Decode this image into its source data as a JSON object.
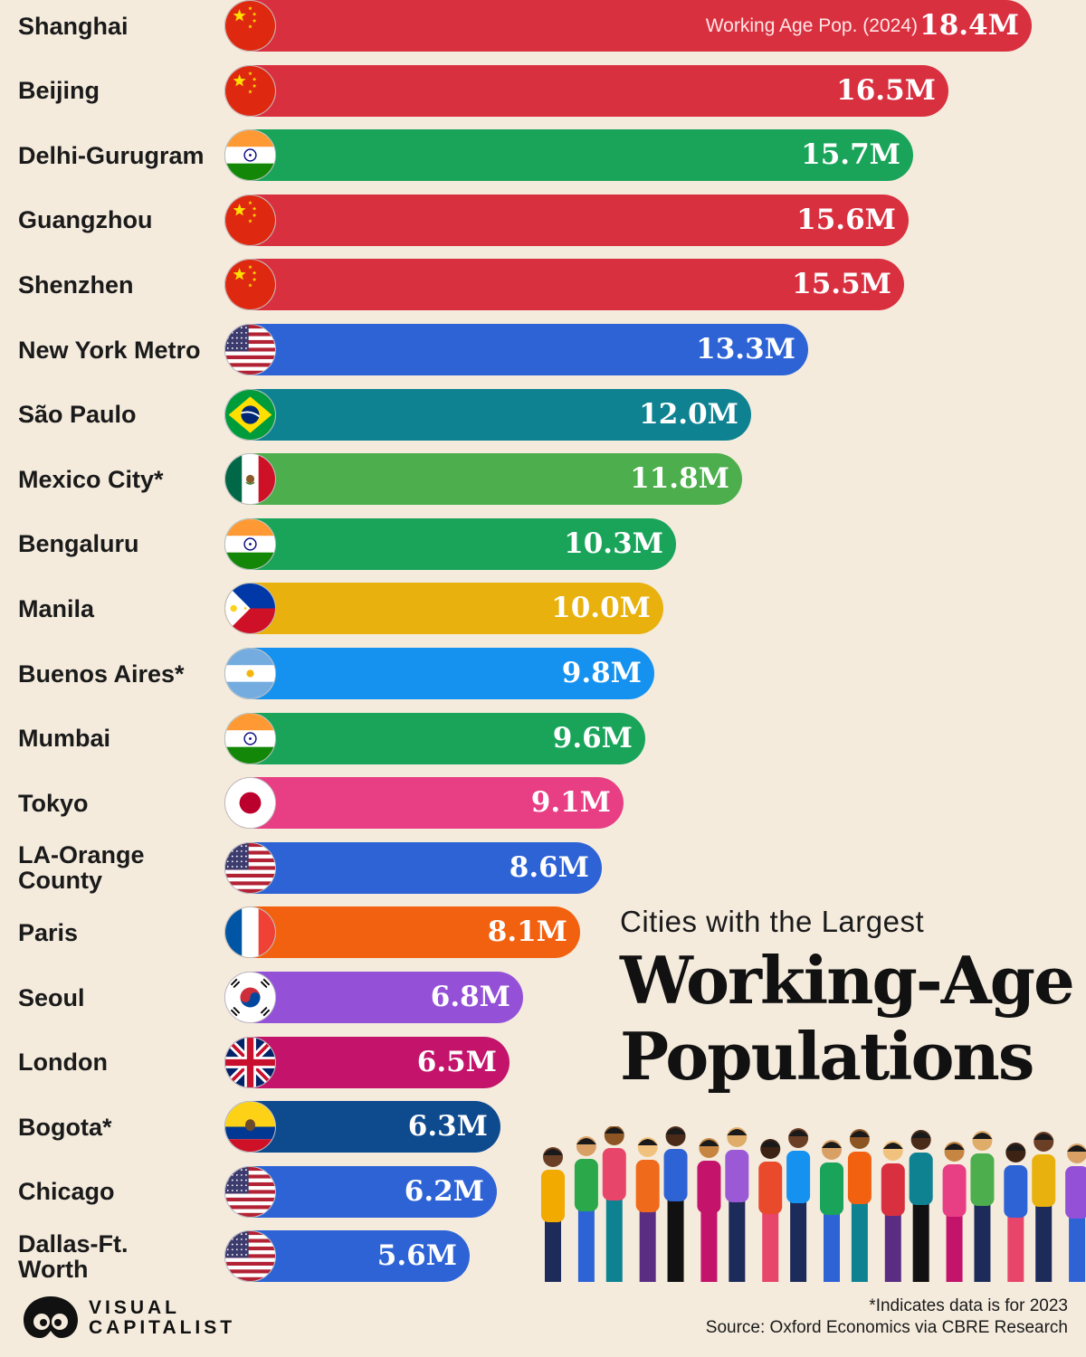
{
  "chart_data": {
    "type": "bar",
    "orientation": "horizontal",
    "title": "Working-Age Populations",
    "subtitle": "Cities with the Largest",
    "value_note": "Working Age Pop. (2024)",
    "unit": "M",
    "bars": [
      {
        "city": "Shanghai",
        "value": 18.4,
        "label": "18.4M",
        "flag": "china-flag-icon",
        "color": "#d93040"
      },
      {
        "city": "Beijing",
        "value": 16.5,
        "label": "16.5M",
        "flag": "china-flag-icon",
        "color": "#d93040"
      },
      {
        "city": "Delhi-Gurugram",
        "value": 15.7,
        "label": "15.7M",
        "flag": "india-flag-icon",
        "color": "#19a45a"
      },
      {
        "city": "Guangzhou",
        "value": 15.6,
        "label": "15.6M",
        "flag": "china-flag-icon",
        "color": "#d93040"
      },
      {
        "city": "Shenzhen",
        "value": 15.5,
        "label": "15.5M",
        "flag": "china-flag-icon",
        "color": "#d93040"
      },
      {
        "city": "New York Metro",
        "value": 13.3,
        "label": "13.3M",
        "flag": "usa-flag-icon",
        "color": "#2e63d6"
      },
      {
        "city": "São Paulo",
        "value": 12.0,
        "label": "12.0M",
        "flag": "brazil-flag-icon",
        "color": "#0f8292"
      },
      {
        "city": "Mexico City*",
        "value": 11.8,
        "label": "11.8M",
        "flag": "mexico-flag-icon",
        "color": "#4cae4c"
      },
      {
        "city": "Bengaluru",
        "value": 10.3,
        "label": "10.3M",
        "flag": "india-flag-icon",
        "color": "#19a45a"
      },
      {
        "city": "Manila",
        "value": 10.0,
        "label": "10.0M",
        "flag": "philippines-flag-icon",
        "color": "#e8b10d"
      },
      {
        "city": "Buenos Aires*",
        "value": 9.8,
        "label": "9.8M",
        "flag": "argentina-flag-icon",
        "color": "#1592ef"
      },
      {
        "city": "Mumbai",
        "value": 9.6,
        "label": "9.6M",
        "flag": "india-flag-icon",
        "color": "#19a45a"
      },
      {
        "city": "Tokyo",
        "value": 9.1,
        "label": "9.1M",
        "flag": "japan-flag-icon",
        "color": "#e83f84"
      },
      {
        "city": "LA-Orange County",
        "value": 8.6,
        "label": "8.6M",
        "flag": "usa-flag-icon",
        "color": "#2e63d6"
      },
      {
        "city": "Paris",
        "value": 8.1,
        "label": "8.1M",
        "flag": "france-flag-icon",
        "color": "#f26110"
      },
      {
        "city": "Seoul",
        "value": 6.8,
        "label": "6.8M",
        "flag": "south-korea-flag-icon",
        "color": "#9451d8"
      },
      {
        "city": "London",
        "value": 6.5,
        "label": "6.5M",
        "flag": "uk-flag-icon",
        "color": "#c3136a"
      },
      {
        "city": "Bogota*",
        "value": 6.3,
        "label": "6.3M",
        "flag": "colombia-flag-icon",
        "color": "#0e4a8e"
      },
      {
        "city": "Chicago",
        "value": 6.2,
        "label": "6.2M",
        "flag": "usa-flag-icon",
        "color": "#2e63d6"
      },
      {
        "city": "Dallas-Ft. Worth",
        "value": 5.6,
        "label": "5.6M",
        "flag": "usa-flag-icon",
        "color": "#2e63d6"
      }
    ],
    "footnote": "*Indicates data is for 2023",
    "source": "Source: Oxford Economics via CBRE Research"
  },
  "brand": {
    "line1": "VISUAL",
    "line2": "CAPITALIST",
    "icon": "visual-capitalist-logo-icon"
  },
  "illustration": "diverse-people-crowd-illustration"
}
